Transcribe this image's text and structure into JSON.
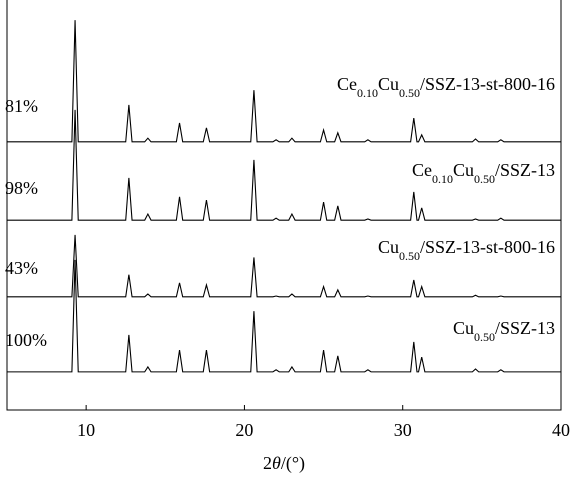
{
  "chart_data": {
    "type": "line",
    "xlabel": "2θ/(°)",
    "xlim": [
      5,
      40
    ],
    "xticks": [
      10,
      20,
      30,
      40
    ],
    "ylim": [
      0,
      100
    ],
    "x": [
      5,
      9.1,
      9.3,
      9.5,
      12.5,
      12.7,
      12.9,
      13.7,
      13.9,
      14.1,
      15.7,
      15.9,
      16.1,
      17.4,
      17.6,
      17.8,
      20.4,
      20.6,
      20.8,
      21.8,
      22,
      22.2,
      22.8,
      23,
      23.2,
      24.8,
      25,
      25.2,
      25.7,
      25.9,
      26.1,
      27.6,
      27.8,
      28,
      30.5,
      30.7,
      30.9,
      31,
      31.2,
      31.4,
      34.4,
      34.6,
      34.8,
      36,
      36.2,
      36.4,
      40
    ],
    "series": [
      {
        "name": "Ce0.10Cu0.50/SSZ-13-st-800-16",
        "label": "81%",
        "color": "#000000",
        "values": [
          65.4,
          65.4,
          95.1,
          65.4,
          65.4,
          74.4,
          65.4,
          65.4,
          66.3,
          65.4,
          65.4,
          70,
          65.4,
          65.4,
          68.8,
          65.4,
          65.4,
          78,
          65.4,
          65.4,
          65.9,
          65.4,
          65.4,
          66.3,
          65.4,
          65.4,
          68.3,
          65.4,
          65.4,
          67.6,
          65.4,
          65.4,
          65.9,
          65.4,
          65.4,
          71.2,
          65.4,
          65.4,
          67.1,
          65.4,
          65.4,
          66.1,
          65.4,
          65.4,
          65.9,
          65.4,
          65.4
        ]
      },
      {
        "name": "Ce0.10Cu0.50/SSZ-13",
        "label": "98%",
        "color": "#000000",
        "values": [
          46.3,
          46.3,
          73.2,
          46.3,
          46.3,
          56.6,
          46.3,
          46.3,
          47.8,
          46.3,
          46.3,
          52,
          46.3,
          46.3,
          51.2,
          46.3,
          46.3,
          61,
          46.3,
          46.3,
          46.8,
          46.3,
          46.3,
          47.8,
          46.3,
          46.3,
          50.7,
          46.3,
          46.3,
          49.8,
          46.3,
          46.3,
          46.6,
          46.3,
          46.3,
          53.2,
          46.3,
          46.3,
          49.3,
          46.3,
          46.3,
          46.6,
          46.3,
          46.3,
          46.8,
          46.3,
          46.3
        ]
      },
      {
        "name": "Cu0.50/SSZ-13-st-800-16",
        "label": "43%",
        "color": "#000000",
        "values": [
          27.6,
          27.6,
          42.7,
          27.6,
          27.6,
          33,
          27.6,
          27.6,
          28.3,
          27.6,
          27.6,
          31,
          27.6,
          27.6,
          30.5,
          27.6,
          27.6,
          37.2,
          27.6,
          27.6,
          27.8,
          27.6,
          27.6,
          28.3,
          27.6,
          27.6,
          30.1,
          27.6,
          27.6,
          29.3,
          27.6,
          27.6,
          27.8,
          27.6,
          27.6,
          31.7,
          27.6,
          27.6,
          30.1,
          27.6,
          27.6,
          28,
          27.6,
          27.6,
          27.8,
          27.6,
          27.6
        ]
      },
      {
        "name": "Cu0.50/SSZ-13",
        "label": "100%",
        "color": "#000000",
        "values": [
          9.3,
          9.3,
          36.6,
          9.3,
          9.3,
          18.3,
          9.3,
          9.3,
          10.5,
          9.3,
          9.3,
          14.6,
          9.3,
          9.3,
          14.6,
          9.3,
          9.3,
          24.1,
          9.3,
          9.3,
          9.8,
          9.3,
          9.3,
          10.5,
          9.3,
          9.3,
          14.6,
          9.3,
          9.3,
          13.2,
          9.3,
          9.3,
          9.8,
          9.3,
          9.3,
          16.6,
          9.3,
          9.3,
          12.9,
          9.3,
          9.3,
          10,
          9.3,
          9.3,
          9.8,
          9.3,
          9.3
        ]
      }
    ]
  }
}
